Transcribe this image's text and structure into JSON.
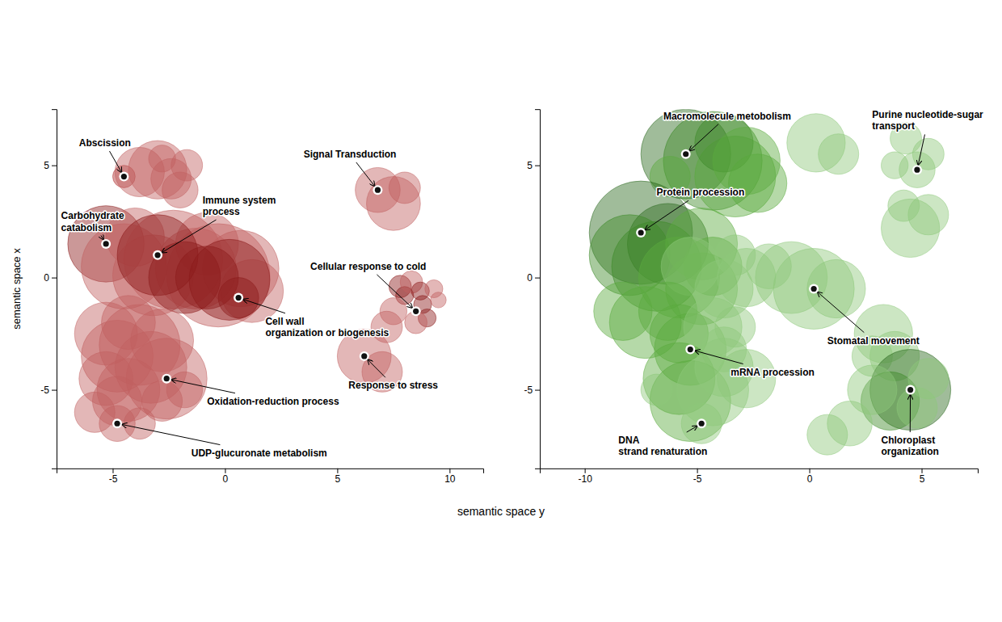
{
  "chart_data": [
    {
      "type": "bubble",
      "ylabel": "semantic space x",
      "xlabel": "semantic space y",
      "xlim": [
        -7.5,
        11.5
      ],
      "ylim": [
        -8.5,
        7.5
      ],
      "xticks": [
        -5,
        0,
        5,
        10
      ],
      "yticks": [
        -5,
        0,
        5
      ],
      "x": [
        -4.5,
        -3.8,
        -3.0,
        -2.4,
        -2.0,
        -2.8,
        -1.7,
        6.8,
        7.5,
        8.0,
        -5.3,
        -4.5,
        -4.0,
        -3.2,
        -2.3,
        -1.3,
        -0.8,
        -0.3,
        0.7,
        1.2,
        -3.0,
        -1.8,
        -0.8,
        0.2,
        0.6,
        7.8,
        8.0,
        8.3,
        8.7,
        8.8,
        9.0,
        9.3,
        9.5,
        8.5,
        7.5,
        7.2,
        -5.3,
        -4.8,
        -4.3,
        -3.8,
        -2.8,
        -2.6,
        -3.3,
        -4.3,
        -4.8,
        -5.3,
        -2.8,
        -1.8,
        -4.8,
        -3.8,
        -5.8,
        6.2,
        7.0
      ],
      "y": [
        4.5,
        4.7,
        4.8,
        4.4,
        3.9,
        5.3,
        5.0,
        3.9,
        3.3,
        4.0,
        1.5,
        0.5,
        1.8,
        0.1,
        0.8,
        0.4,
        1.5,
        0.1,
        0.4,
        -0.6,
        1.0,
        0.0,
        0.0,
        -0.1,
        -0.9,
        -0.4,
        -0.8,
        -0.2,
        -0.6,
        -1.2,
        -1.8,
        -0.5,
        -1.0,
        -2.0,
        -1.5,
        -2.2,
        -2.5,
        -3.5,
        -2.0,
        -3.0,
        -2.8,
        -4.5,
        -4.0,
        -5.0,
        -5.5,
        -4.5,
        -5.5,
        -5.0,
        -6.5,
        -6.5,
        -6.0,
        -3.5,
        -4.2
      ],
      "sizes": [
        0.5,
        1.1,
        1.3,
        0.9,
        0.8,
        0.6,
        0.7,
        1.0,
        1.2,
        0.7,
        1.7,
        1.9,
        1.3,
        1.8,
        2.2,
        1.8,
        1.4,
        2.3,
        1.7,
        1.4,
        1.8,
        1.6,
        1.4,
        1.8,
        0.9,
        0.5,
        0.4,
        0.5,
        0.4,
        0.4,
        0.4,
        0.4,
        0.35,
        0.5,
        0.6,
        0.7,
        1.4,
        1.6,
        1.2,
        1.8,
        1.4,
        1.8,
        1.6,
        1.4,
        1.1,
        1.2,
        0.9,
        0.8,
        0.8,
        0.7,
        0.9,
        1.2,
        0.9
      ],
      "colors": [
        "#b03030",
        "#c06060",
        "#c06060",
        "#c06060",
        "#c06060",
        "#c06060",
        "#c06060",
        "#c06060",
        "#c06060",
        "#c06060",
        "#8b1a1a",
        "#c06060",
        "#c06060",
        "#c06060",
        "#c06060",
        "#c06060",
        "#c06060",
        "#c06060",
        "#c06060",
        "#c06060",
        "#8b1a1a",
        "#8b1a1a",
        "#8b1a1a",
        "#8b1a1a",
        "#8b1a1a",
        "#8b1a1a",
        "#8b1a1a",
        "#c06060",
        "#8b1a1a",
        "#8b1a1a",
        "#8b1a1a",
        "#c06060",
        "#c06060",
        "#c06060",
        "#c06060",
        "#c06060",
        "#c06060",
        "#c06060",
        "#c06060",
        "#c06060",
        "#c06060",
        "#c06060",
        "#c06060",
        "#c06060",
        "#c06060",
        "#c06060",
        "#c06060",
        "#c06060",
        "#c06060",
        "#c06060",
        "#c06060",
        "#c06060",
        "#c06060"
      ],
      "annotations": [
        {
          "text": "Abscission",
          "x": -4.5,
          "y": 4.5,
          "text_x": -6.5,
          "text_y": 6.0
        },
        {
          "text": "Signal Transduction",
          "x": 6.8,
          "y": 3.9,
          "text_x": 3.5,
          "text_y": 5.5
        },
        {
          "text": "Immune system\nprocess",
          "x": -3.0,
          "y": 1.0,
          "text_x": -1.0,
          "text_y": 3.2
        },
        {
          "text": "Carbohydrate\ncatabolism",
          "x": -5.3,
          "y": 1.5,
          "text_x": -7.3,
          "text_y": 2.5
        },
        {
          "text": "Cellular response to cold",
          "x": 8.5,
          "y": -1.5,
          "text_x": 3.8,
          "text_y": 0.5
        },
        {
          "text": "Cell wall\norganization or biogenesis",
          "x": 0.6,
          "y": -0.9,
          "text_x": 1.8,
          "text_y": -2.2
        },
        {
          "text": "Oxidation-reduction process",
          "x": -2.6,
          "y": -4.5,
          "text_x": -0.8,
          "text_y": -5.5
        },
        {
          "text": "Response to stress",
          "x": 6.2,
          "y": -3.5,
          "text_x": 5.5,
          "text_y": -4.8
        },
        {
          "text": "UDP-glucuronate metabolism",
          "x": -4.8,
          "y": -6.5,
          "text_x": -1.5,
          "text_y": -7.8
        }
      ]
    },
    {
      "type": "bubble",
      "xlim": [
        -12,
        7.5
      ],
      "ylim": [
        -8.5,
        7.5
      ],
      "xticks": [
        -10,
        -5,
        0,
        5
      ],
      "yticks": [
        -5,
        0,
        5
      ],
      "x": [
        -5.5,
        -4.3,
        -3.3,
        -3.8,
        -2.8,
        -2.3,
        -6.2,
        0.3,
        1.3,
        4.3,
        5.3,
        4.8,
        3.8,
        4.5,
        5.3,
        4.2,
        -7.5,
        -6.3,
        -8.0,
        -6.8,
        -5.8,
        -4.8,
        -4.3,
        -4.8,
        -5.3,
        -3.8,
        -3.3,
        -2.8,
        -1.8,
        -8.3,
        -7.3,
        -6.3,
        -5.8,
        -5.3,
        -4.3,
        -3.8,
        -3.3,
        -0.8,
        0.2,
        1.2,
        -5.8,
        -5.3,
        -4.3,
        -3.8,
        -2.8,
        -4.8,
        -6.8,
        3.3,
        3.8,
        2.8,
        4.5,
        3.6,
        2.8,
        4.8,
        5.3,
        1.8,
        0.8
      ],
      "y": [
        5.5,
        5.2,
        4.5,
        6.0,
        5.2,
        4.2,
        4.5,
        6.0,
        5.5,
        6.2,
        5.5,
        4.8,
        5.0,
        2.2,
        2.8,
        3.2,
        2.0,
        1.5,
        1.0,
        0.5,
        0.0,
        1.5,
        0.5,
        -0.5,
        0.5,
        -0.5,
        1.0,
        0.0,
        0.5,
        -1.5,
        -2.0,
        -1.5,
        -2.5,
        -3.2,
        -2.2,
        -3.2,
        -2.2,
        0.0,
        -0.5,
        -0.5,
        -4.5,
        -5.5,
        -5.0,
        -4.0,
        -4.5,
        -6.5,
        -5.0,
        -2.5,
        -3.5,
        -3.5,
        -5.0,
        -5.5,
        -5.0,
        -5.8,
        -4.5,
        -6.5,
        -7.0
      ],
      "sizes": [
        2.0,
        2.2,
        1.8,
        1.3,
        1.5,
        1.3,
        0.9,
        1.3,
        0.9,
        0.7,
        0.7,
        0.8,
        0.6,
        1.3,
        0.9,
        0.7,
        2.3,
        1.8,
        1.8,
        2.0,
        1.8,
        1.6,
        1.3,
        1.6,
        1.3,
        1.3,
        0.9,
        1.3,
        1.0,
        1.3,
        1.6,
        1.3,
        1.3,
        1.6,
        1.3,
        1.0,
        0.9,
        1.6,
        1.8,
        1.3,
        1.6,
        1.8,
        1.6,
        1.3,
        1.3,
        0.9,
        0.7,
        1.3,
        1.1,
        0.9,
        1.8,
        1.3,
        1.1,
        0.9,
        0.9,
        1.0,
        0.9
      ],
      "colors": [
        "#2d6a20",
        "#3d8a28",
        "#5aaa3f",
        "#3d8a28",
        "#5aaa3f",
        "#5aaa3f",
        "#5aaa3f",
        "#8dc87a",
        "#8dc87a",
        "#8dc87a",
        "#8dc87a",
        "#8dc87a",
        "#8dc87a",
        "#8dc87a",
        "#8dc87a",
        "#8dc87a",
        "#2d6a20",
        "#2d6a20",
        "#3d8a28",
        "#3d8a28",
        "#5aaa3f",
        "#5aaa3f",
        "#5aaa3f",
        "#5aaa3f",
        "#8dc87a",
        "#8dc87a",
        "#8dc87a",
        "#8dc87a",
        "#8dc87a",
        "#5aaa3f",
        "#5aaa3f",
        "#5aaa3f",
        "#5aaa3f",
        "#5aaa3f",
        "#8dc87a",
        "#8dc87a",
        "#8dc87a",
        "#8dc87a",
        "#8dc87a",
        "#8dc87a",
        "#5aaa3f",
        "#5aaa3f",
        "#8dc87a",
        "#8dc87a",
        "#8dc87a",
        "#8dc87a",
        "#8dc87a",
        "#8dc87a",
        "#8dc87a",
        "#8dc87a",
        "#2d6a20",
        "#3d8a28",
        "#8dc87a",
        "#8dc87a",
        "#8dc87a",
        "#8dc87a",
        "#8dc87a"
      ],
      "annotations": [
        {
          "text": "Macromolecule metobolism",
          "x": -5.5,
          "y": 5.5,
          "text_x": -6.5,
          "text_y": 7.2
        },
        {
          "text": "Purine nucleotide-sugar\ntransport",
          "x": 4.8,
          "y": 4.8,
          "text_x": 2.8,
          "text_y": 7.0
        },
        {
          "text": "Protein procession",
          "x": -7.5,
          "y": 2.0,
          "text_x": -6.8,
          "text_y": 3.8
        },
        {
          "text": "Stomatal movement",
          "x": 0.2,
          "y": -0.5,
          "text_x": 0.8,
          "text_y": -2.8
        },
        {
          "text": "mRNA procession",
          "x": -5.3,
          "y": -3.2,
          "text_x": -3.5,
          "text_y": -4.2
        },
        {
          "text": "DNA\nstrand renaturation",
          "x": -4.8,
          "y": -6.5,
          "text_x": -8.5,
          "text_y": -7.5
        },
        {
          "text": "Chloroplast\norganization",
          "x": 4.5,
          "y": -5.0,
          "text_x": 3.2,
          "text_y": -7.5
        }
      ]
    }
  ]
}
